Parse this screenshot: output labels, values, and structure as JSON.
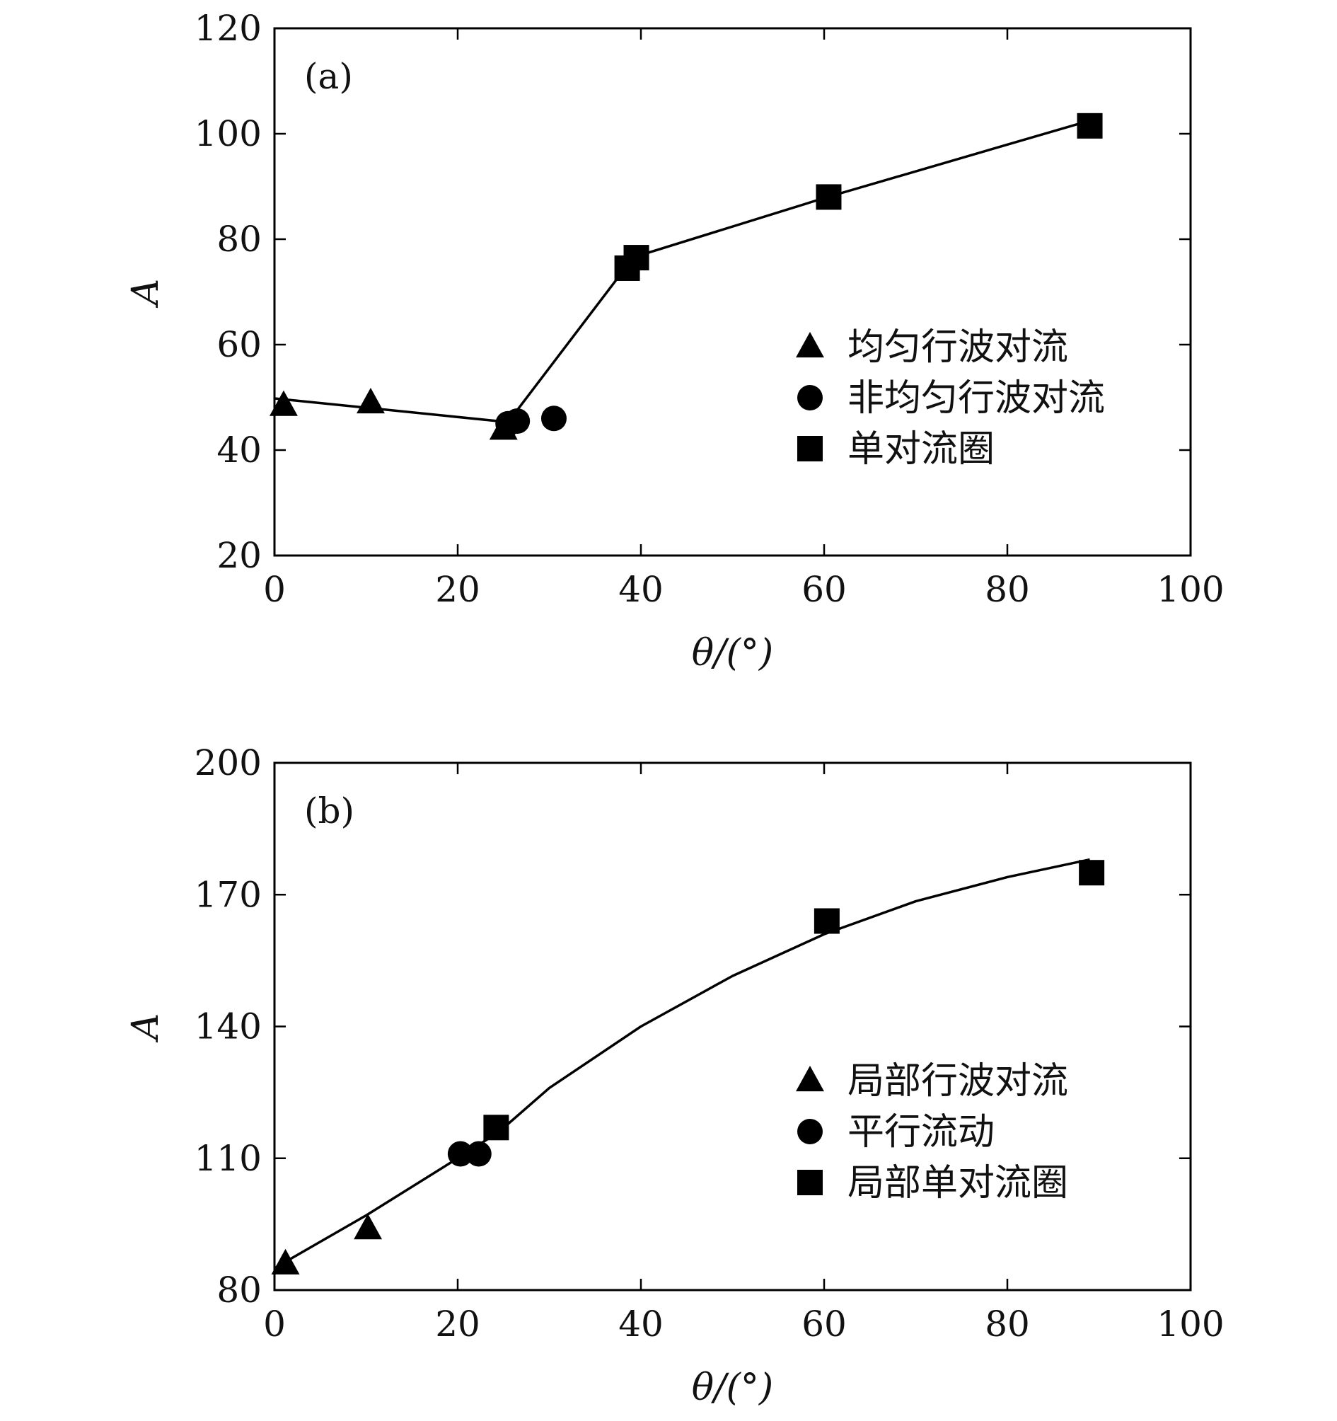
{
  "chart_data": [
    {
      "type": "scatter",
      "panel_label": "(a)",
      "xlabel": "θ/(°)",
      "ylabel": "A",
      "xlim": [
        0,
        100
      ],
      "ylim": [
        20,
        120
      ],
      "xticks": [
        "0",
        "20",
        "40",
        "60",
        "80",
        "100"
      ],
      "yticks": [
        "20",
        "40",
        "60",
        "80",
        "100",
        "120"
      ],
      "legend_position": "center-right",
      "series": [
        {
          "name": "均匀行波对流",
          "marker": "triangle",
          "points": [
            [
              1,
              48.5
            ],
            [
              10.5,
              49
            ],
            [
              25,
              44
            ]
          ]
        },
        {
          "name": "非均匀行波对流",
          "marker": "circle",
          "points": [
            [
              25.5,
              45
            ],
            [
              26.5,
              45.5
            ],
            [
              30.5,
              46
            ]
          ]
        },
        {
          "name": "单对流圈",
          "marker": "square",
          "points": [
            [
              38.5,
              74.5
            ],
            [
              39.5,
              76.5
            ],
            [
              60.5,
              88
            ],
            [
              89,
              101.5
            ]
          ]
        }
      ],
      "fit_line": [
        [
          0,
          49.8
        ],
        [
          25.5,
          45.3
        ],
        [
          38.5,
          75
        ],
        [
          40,
          77
        ],
        [
          60,
          87.8
        ],
        [
          89,
          102.5
        ]
      ]
    },
    {
      "type": "scatter",
      "panel_label": "(b)",
      "xlabel": "θ/(°)",
      "ylabel": "A",
      "xlim": [
        0,
        100
      ],
      "ylim": [
        80,
        200
      ],
      "xticks": [
        "0",
        "20",
        "40",
        "60",
        "80",
        "100"
      ],
      "yticks": [
        "80",
        "110",
        "140",
        "170",
        "200"
      ],
      "legend_position": "lower-right",
      "series": [
        {
          "name": "局部行波对流",
          "marker": "triangle",
          "points": [
            [
              1.2,
              86
            ],
            [
              10.2,
              94
            ]
          ]
        },
        {
          "name": "平行流动",
          "marker": "circle",
          "points": [
            [
              20.3,
              111
            ],
            [
              22.3,
              111
            ]
          ]
        },
        {
          "name": "局部单对流圈",
          "marker": "square",
          "points": [
            [
              24.2,
              117
            ],
            [
              60.3,
              164
            ],
            [
              89.2,
              175
            ]
          ]
        }
      ],
      "fit_line": [
        [
          0,
          85
        ],
        [
          10,
          97
        ],
        [
          20,
          110
        ],
        [
          24.5,
          116
        ],
        [
          30,
          126
        ],
        [
          40,
          140
        ],
        [
          50,
          151.5
        ],
        [
          60,
          161
        ],
        [
          70,
          168.5
        ],
        [
          80,
          174
        ],
        [
          89,
          178
        ]
      ]
    }
  ]
}
